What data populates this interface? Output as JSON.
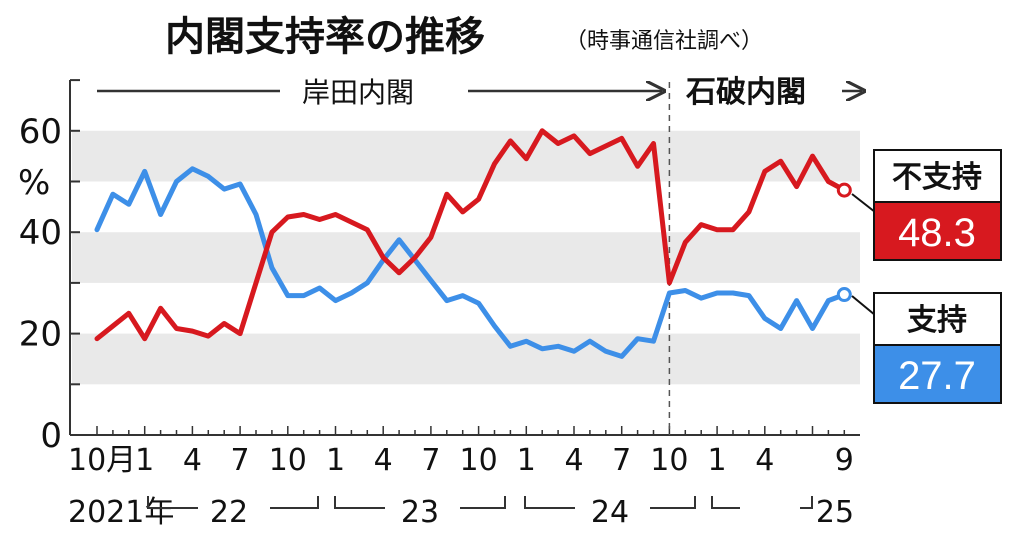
{
  "header": {
    "title": "内閣支持率の推移",
    "subtitle": "（時事通信社調べ）"
  },
  "eras": [
    {
      "label": "岸田内閣"
    },
    {
      "label": "石破内閣"
    }
  ],
  "chart_data": {
    "type": "line",
    "title": "内閣支持率の推移",
    "subtitle": "（時事通信社調べ）",
    "ylabel": "%",
    "ylim": [
      0,
      70
    ],
    "yticks": [
      "0",
      "20",
      "40",
      "60"
    ],
    "grid": "horizontal bands",
    "x_tick_labels": [
      "10月",
      "1",
      "4",
      "7",
      "10",
      "1",
      "4",
      "7",
      "10",
      "1",
      "4",
      "7",
      "10",
      "1",
      "4",
      "9"
    ],
    "year_labels": [
      "2021年",
      "22",
      "23",
      "24",
      "25"
    ],
    "x": [
      "2021-10",
      "2021-11",
      "2021-12",
      "2022-01",
      "2022-02",
      "2022-03",
      "2022-04",
      "2022-05",
      "2022-06",
      "2022-07",
      "2022-08",
      "2022-09",
      "2022-10",
      "2022-11",
      "2022-12",
      "2023-01",
      "2023-02",
      "2023-03",
      "2023-04",
      "2023-05",
      "2023-06",
      "2023-07",
      "2023-08",
      "2023-09",
      "2023-10",
      "2023-11",
      "2023-12",
      "2024-01",
      "2024-02",
      "2024-03",
      "2024-04",
      "2024-05",
      "2024-06",
      "2024-07",
      "2024-08",
      "2024-09",
      "2024-10",
      "2024-11",
      "2024-12",
      "2025-01",
      "2025-02",
      "2025-03",
      "2025-04",
      "2025-05",
      "2025-06",
      "2025-07",
      "2025-08",
      "2025-09"
    ],
    "series": [
      {
        "name": "不支持",
        "color": "#d7191f",
        "latest_value": "48.3",
        "values": [
          19.0,
          21.5,
          24.0,
          19.0,
          25.0,
          21.0,
          20.5,
          19.5,
          22.0,
          20.0,
          30.0,
          40.0,
          43.0,
          43.5,
          42.5,
          43.5,
          42.0,
          40.5,
          35.0,
          32.0,
          35.0,
          39.0,
          47.5,
          44.0,
          46.5,
          53.5,
          58.0,
          54.5,
          60.0,
          57.5,
          59.0,
          55.5,
          57.0,
          58.5,
          53.0,
          57.5,
          30.0,
          38.0,
          41.5,
          40.5,
          40.5,
          44.0,
          52.0,
          54.0,
          49.0,
          55.0,
          50.0,
          48.3
        ]
      },
      {
        "name": "支持",
        "color": "#3d8fe8",
        "latest_value": "27.7",
        "values": [
          40.5,
          47.5,
          45.5,
          52.0,
          43.5,
          50.0,
          52.5,
          51.0,
          48.5,
          49.5,
          43.5,
          33.0,
          27.5,
          27.5,
          29.0,
          26.5,
          28.0,
          30.0,
          34.5,
          38.5,
          34.5,
          30.5,
          26.5,
          27.5,
          26.0,
          21.5,
          17.5,
          18.5,
          17.0,
          17.5,
          16.5,
          18.5,
          16.5,
          15.5,
          19.0,
          18.5,
          28.0,
          28.5,
          27.0,
          28.0,
          28.0,
          27.5,
          23.0,
          21.0,
          26.5,
          21.0,
          26.5,
          27.7
        ]
      }
    ]
  }
}
